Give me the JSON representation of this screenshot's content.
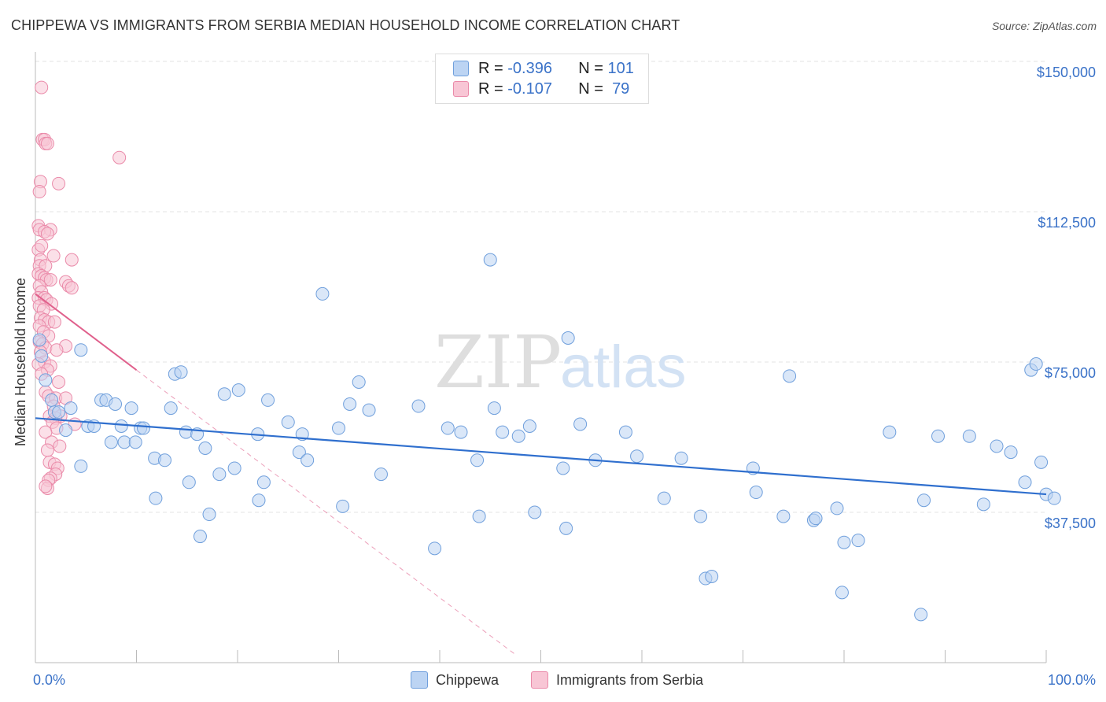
{
  "title": "CHIPPEWA VS IMMIGRANTS FROM SERBIA MEDIAN HOUSEHOLD INCOME CORRELATION CHART",
  "source": "Source: ZipAtlas.com",
  "watermark": {
    "zip": "ZIP",
    "atlas": "atlas"
  },
  "colors": {
    "chippewa_fill": "#bcd4f3",
    "chippewa_stroke": "#6f9fdc",
    "chippewa_line": "#2f6fce",
    "serbia_fill": "#f8c6d5",
    "serbia_stroke": "#ea8aa9",
    "serbia_line": "#e0608c",
    "tick_label": "#3a72c8",
    "grid": "#e3e3e3"
  },
  "legend": {
    "rows": [
      {
        "r_label": "R =",
        "r_value": "-0.396",
        "n_label": "N =",
        "n_value": "101"
      },
      {
        "r_label": "R =",
        "r_value": "-0.107",
        "n_label": "N =",
        "n_value": "79"
      }
    ]
  },
  "chart_data": {
    "type": "scatter",
    "title": "CHIPPEWA VS IMMIGRANTS FROM SERBIA MEDIAN HOUSEHOLD INCOME CORRELATION CHART",
    "xlabel": "",
    "ylabel": "Median Household Income",
    "xlim": [
      0,
      100
    ],
    "ylim": [
      0,
      152000
    ],
    "x_tick_labels": [
      "0.0%",
      "100.0%"
    ],
    "y_ticks": [
      37500,
      75000,
      112500,
      150000
    ],
    "y_tick_labels": [
      "$37,500",
      "$75,000",
      "$112,500",
      "$150,000"
    ],
    "grid": true,
    "legend_position": "top-center and bottom",
    "series": [
      {
        "name": "Chippewa",
        "r": -0.396,
        "n": 101,
        "trend": [
          [
            0,
            61000
          ],
          [
            100,
            42000
          ]
        ],
        "points": [
          [
            0.4,
            80500
          ],
          [
            0.6,
            76500
          ],
          [
            1.0,
            70500
          ],
          [
            1.6,
            65500
          ],
          [
            1.9,
            62500
          ],
          [
            2.3,
            62500
          ],
          [
            3.0,
            58000
          ],
          [
            3.5,
            63500
          ],
          [
            4.5,
            78000
          ],
          [
            4.5,
            49000
          ],
          [
            5.2,
            59000
          ],
          [
            5.8,
            59000
          ],
          [
            6.5,
            65500
          ],
          [
            7.0,
            65500
          ],
          [
            7.5,
            55000
          ],
          [
            7.9,
            64500
          ],
          [
            8.5,
            59000
          ],
          [
            8.8,
            55000
          ],
          [
            9.5,
            63500
          ],
          [
            9.9,
            55000
          ],
          [
            10.4,
            58500
          ],
          [
            10.7,
            58500
          ],
          [
            11.8,
            51000
          ],
          [
            11.9,
            41000
          ],
          [
            12.8,
            50500
          ],
          [
            13.4,
            63500
          ],
          [
            13.8,
            72000
          ],
          [
            14.4,
            72500
          ],
          [
            14.9,
            57500
          ],
          [
            15.2,
            45000
          ],
          [
            16.0,
            57000
          ],
          [
            16.3,
            31500
          ],
          [
            16.8,
            53500
          ],
          [
            17.2,
            37000
          ],
          [
            18.2,
            47000
          ],
          [
            18.7,
            67000
          ],
          [
            19.7,
            48500
          ],
          [
            20.1,
            68000
          ],
          [
            22.0,
            57000
          ],
          [
            22.1,
            40500
          ],
          [
            22.6,
            45000
          ],
          [
            23.0,
            65500
          ],
          [
            25.0,
            60000
          ],
          [
            26.1,
            52500
          ],
          [
            26.4,
            57000
          ],
          [
            26.9,
            50500
          ],
          [
            28.4,
            92000
          ],
          [
            30.0,
            58500
          ],
          [
            30.4,
            39000
          ],
          [
            31.1,
            64500
          ],
          [
            32.0,
            70000
          ],
          [
            33.0,
            63000
          ],
          [
            34.2,
            47000
          ],
          [
            37.9,
            64000
          ],
          [
            39.5,
            28500
          ],
          [
            40.8,
            58500
          ],
          [
            42.1,
            57500
          ],
          [
            43.7,
            50500
          ],
          [
            43.9,
            36500
          ],
          [
            45.0,
            100500
          ],
          [
            45.4,
            63500
          ],
          [
            46.2,
            57500
          ],
          [
            47.8,
            56500
          ],
          [
            48.9,
            59000
          ],
          [
            49.4,
            37500
          ],
          [
            52.2,
            48500
          ],
          [
            52.5,
            33500
          ],
          [
            52.7,
            81000
          ],
          [
            53.9,
            59500
          ],
          [
            55.4,
            50500
          ],
          [
            58.4,
            57500
          ],
          [
            59.5,
            51500
          ],
          [
            62.2,
            41000
          ],
          [
            63.9,
            51000
          ],
          [
            65.8,
            36500
          ],
          [
            66.3,
            21000
          ],
          [
            66.9,
            21500
          ],
          [
            71.0,
            48500
          ],
          [
            71.3,
            42500
          ],
          [
            74.0,
            36500
          ],
          [
            74.6,
            71500
          ],
          [
            77.0,
            35500
          ],
          [
            77.2,
            36000
          ],
          [
            79.3,
            38500
          ],
          [
            80.0,
            30000
          ],
          [
            81.4,
            30500
          ],
          [
            79.8,
            17500
          ],
          [
            84.5,
            57500
          ],
          [
            87.6,
            12000
          ],
          [
            87.9,
            40500
          ],
          [
            89.3,
            56500
          ],
          [
            92.4,
            56500
          ],
          [
            93.8,
            39500
          ],
          [
            95.1,
            54000
          ],
          [
            96.5,
            52500
          ],
          [
            97.9,
            45000
          ],
          [
            98.5,
            73000
          ],
          [
            99.0,
            74500
          ],
          [
            99.5,
            50000
          ],
          [
            100.0,
            42000
          ],
          [
            100.8,
            41000
          ]
        ]
      },
      {
        "name": "Immigrants from Serbia",
        "r": -0.107,
        "n": 79,
        "trend_solid": [
          [
            0,
            92000
          ],
          [
            10,
            73000
          ]
        ],
        "trend_dashed": [
          [
            10,
            73000
          ],
          [
            47.5,
            2000
          ]
        ],
        "points": [
          [
            0.6,
            143500
          ],
          [
            0.7,
            130500
          ],
          [
            0.9,
            130500
          ],
          [
            1.0,
            129500
          ],
          [
            1.2,
            129500
          ],
          [
            0.5,
            120000
          ],
          [
            2.3,
            119500
          ],
          [
            0.4,
            117500
          ],
          [
            8.3,
            126000
          ],
          [
            0.3,
            109000
          ],
          [
            0.4,
            108000
          ],
          [
            1.5,
            108000
          ],
          [
            0.9,
            107500
          ],
          [
            1.2,
            107000
          ],
          [
            0.3,
            103000
          ],
          [
            0.6,
            104000
          ],
          [
            1.8,
            101500
          ],
          [
            0.5,
            100500
          ],
          [
            3.6,
            100500
          ],
          [
            0.4,
            99000
          ],
          [
            1.0,
            99000
          ],
          [
            0.3,
            97000
          ],
          [
            0.6,
            96500
          ],
          [
            0.9,
            96000
          ],
          [
            1.1,
            95500
          ],
          [
            1.5,
            95500
          ],
          [
            3.0,
            95000
          ],
          [
            0.4,
            94000
          ],
          [
            3.3,
            94000
          ],
          [
            3.6,
            93500
          ],
          [
            0.6,
            92500
          ],
          [
            0.3,
            91000
          ],
          [
            0.9,
            91000
          ],
          [
            1.1,
            90500
          ],
          [
            1.6,
            89500
          ],
          [
            0.4,
            89000
          ],
          [
            0.8,
            88000
          ],
          [
            0.5,
            86000
          ],
          [
            0.9,
            85500
          ],
          [
            1.3,
            85000
          ],
          [
            1.9,
            85000
          ],
          [
            0.4,
            84000
          ],
          [
            0.8,
            82500
          ],
          [
            1.3,
            81500
          ],
          [
            0.4,
            80000
          ],
          [
            0.7,
            79500
          ],
          [
            3.0,
            79000
          ],
          [
            1.0,
            78500
          ],
          [
            2.1,
            78000
          ],
          [
            0.5,
            77500
          ],
          [
            0.9,
            75000
          ],
          [
            0.3,
            74500
          ],
          [
            1.5,
            74000
          ],
          [
            1.2,
            73000
          ],
          [
            0.6,
            72000
          ],
          [
            2.3,
            70000
          ],
          [
            1.0,
            67500
          ],
          [
            1.3,
            66500
          ],
          [
            2.0,
            66000
          ],
          [
            3.0,
            66000
          ],
          [
            1.8,
            64000
          ],
          [
            2.5,
            61500
          ],
          [
            1.4,
            61500
          ],
          [
            2.0,
            61000
          ],
          [
            1.7,
            60000
          ],
          [
            3.9,
            59500
          ],
          [
            2.1,
            58500
          ],
          [
            1.0,
            57500
          ],
          [
            1.6,
            55000
          ],
          [
            2.4,
            54000
          ],
          [
            1.2,
            53000
          ],
          [
            1.4,
            50000
          ],
          [
            1.9,
            49500
          ],
          [
            2.2,
            48500
          ],
          [
            2.0,
            47000
          ],
          [
            1.5,
            46000
          ],
          [
            1.3,
            45500
          ],
          [
            1.2,
            43500
          ],
          [
            1.0,
            44000
          ]
        ]
      }
    ]
  },
  "bottom_legend": [
    {
      "label": "Chippewa"
    },
    {
      "label": "Immigrants from Serbia"
    }
  ]
}
